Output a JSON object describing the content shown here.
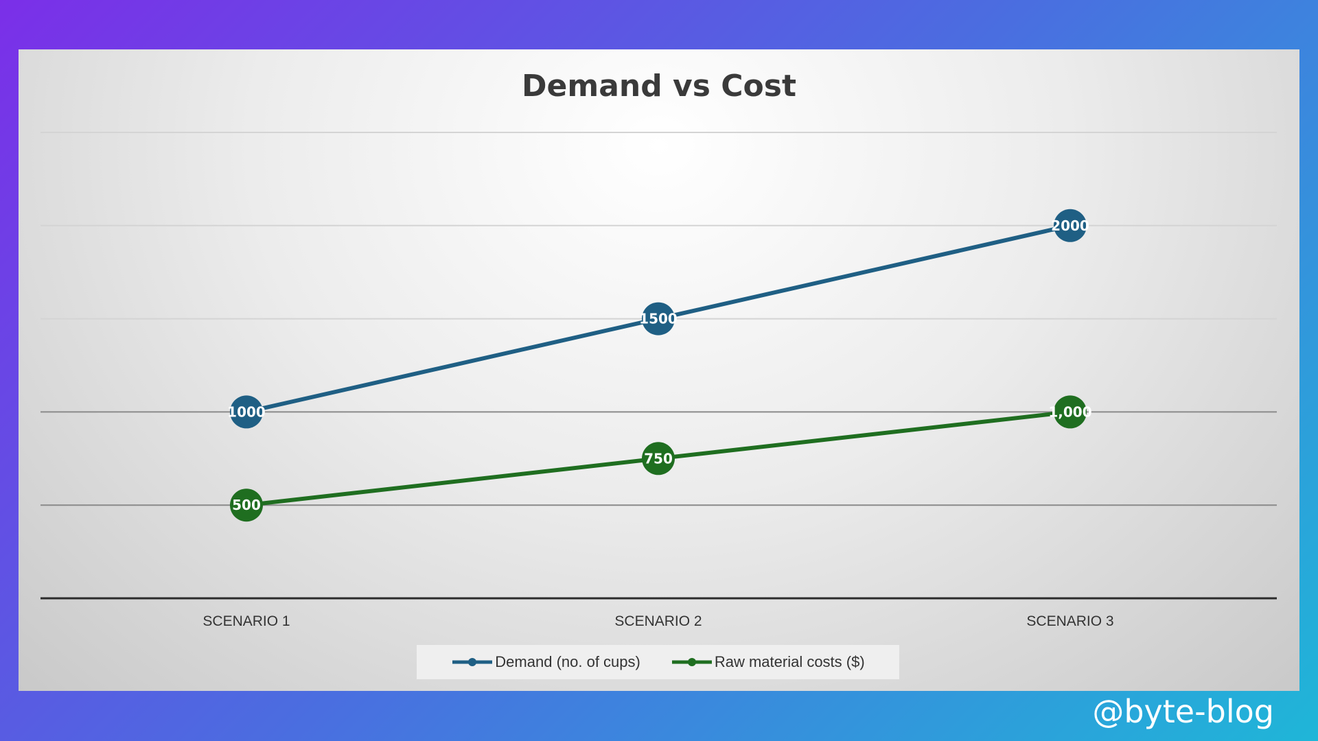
{
  "chart_data": {
    "type": "line",
    "title": "Demand vs Cost",
    "categories": [
      "SCENARIO 1",
      "SCENARIO 2",
      "SCENARIO 3"
    ],
    "series": [
      {
        "name": "Demand (no. of cups)",
        "values": [
          1000,
          1500,
          2000
        ],
        "labels": [
          "1000",
          "1500",
          "2000"
        ],
        "color": "#1f5f84"
      },
      {
        "name": "Raw material costs ($)",
        "values": [
          500,
          750,
          1000
        ],
        "labels": [
          "500",
          "750",
          "1,000"
        ],
        "color": "#1f6e20"
      }
    ],
    "ylim": [
      0,
      2500
    ],
    "grid": true,
    "legend": "bottom"
  },
  "watermark": "@byte-blog"
}
